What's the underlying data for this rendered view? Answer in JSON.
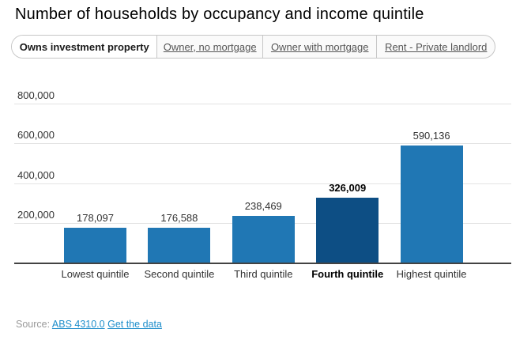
{
  "title": "Number of households by occupancy and income quintile",
  "tabs": [
    {
      "label": "Owns investment property",
      "active": true
    },
    {
      "label": "Owner, no mortgage",
      "active": false
    },
    {
      "label": "Owner with mortgage",
      "active": false
    },
    {
      "label": "Rent - Private landlord",
      "active": false
    }
  ],
  "chart_data": {
    "type": "bar",
    "title": "Number of households by occupancy and income quintile",
    "categories": [
      "Lowest quintile",
      "Second quintile",
      "Third quintile",
      "Fourth quintile",
      "Highest quintile"
    ],
    "values": [
      178097,
      176588,
      238469,
      326009,
      590136
    ],
    "value_labels": [
      "178,097",
      "176,588",
      "238,469",
      "326,009",
      "590,136"
    ],
    "highlighted_index": 3,
    "xlabel": "",
    "ylabel": "",
    "ylim": [
      0,
      800000
    ],
    "yticks": [
      200000,
      400000,
      600000,
      800000
    ],
    "ytick_labels": [
      "200,000",
      "400,000",
      "600,000",
      "800,000"
    ],
    "grid": true,
    "legend": "none",
    "bar_color": "#2077b4",
    "highlight_color": "#0d4e84"
  },
  "source": {
    "prefix": "Source:",
    "links": [
      {
        "label": "ABS 4310.0"
      },
      {
        "label": "Get the data"
      }
    ]
  },
  "colors": {
    "link_blue": "#1e8ecb",
    "gridline": "#e3e3e3",
    "axis": "#434343",
    "tab_border": "#c6c6c6"
  }
}
